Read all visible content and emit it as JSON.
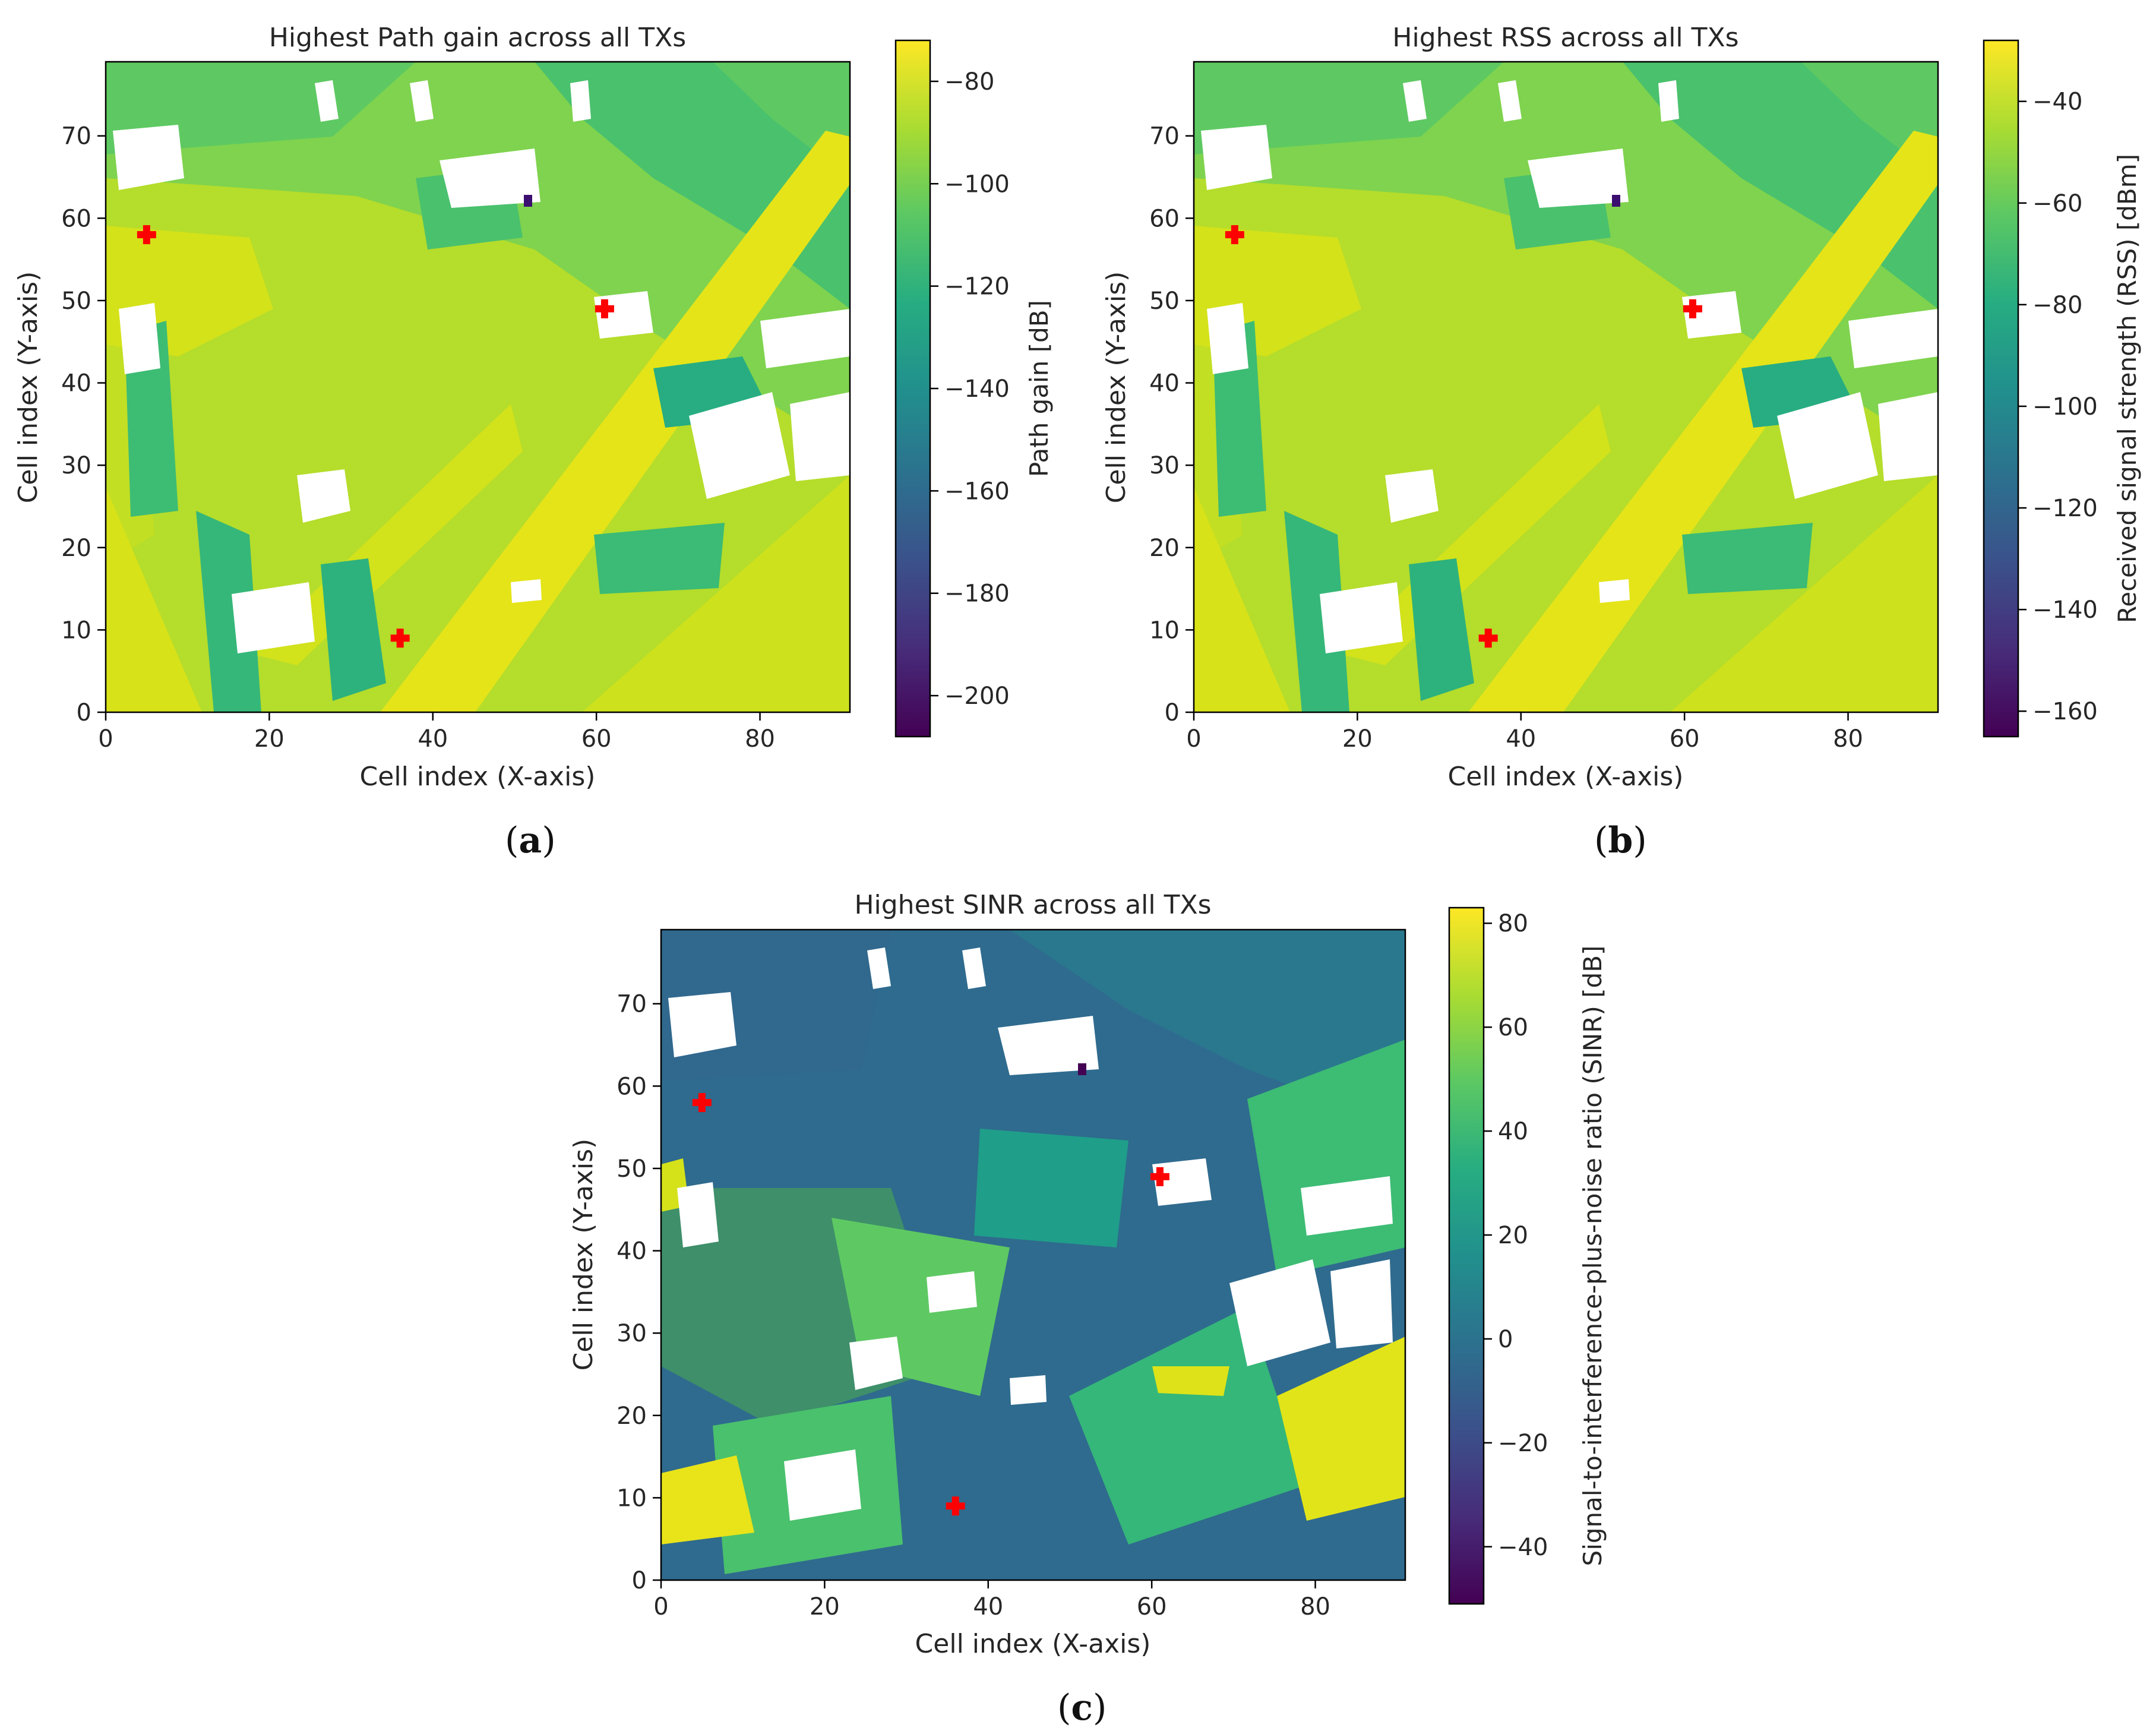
{
  "figure": {
    "captions": [
      {
        "open": "(",
        "letter": "a",
        "close": ")"
      },
      {
        "open": "(",
        "letter": "b",
        "close": ")"
      },
      {
        "open": "(",
        "letter": "c",
        "close": ")"
      }
    ]
  },
  "chart_data": [
    {
      "type": "heatmap",
      "title": "Highest Path gain across all TXs",
      "xlabel": "Cell index (X-axis)",
      "ylabel": "Cell index (Y-axis)",
      "xlim": [
        0,
        91
      ],
      "ylim": [
        0,
        79
      ],
      "xticks": [
        "0",
        "20",
        "40",
        "60",
        "80"
      ],
      "yticks": [
        "0",
        "10",
        "20",
        "30",
        "40",
        "50",
        "60",
        "70"
      ],
      "colorbar": {
        "label": "Path gain [dB]",
        "range": [
          -208,
          -72
        ],
        "ticks": [
          "−80",
          "−100",
          "−120",
          "−140",
          "−160",
          "−180",
          "−200"
        ],
        "colormap": "viridis"
      },
      "grid": false,
      "transmitters": [
        {
          "x": 5,
          "y": 58
        },
        {
          "x": 61,
          "y": 49
        },
        {
          "x": 36,
          "y": 9
        }
      ],
      "marker_color": "#ff0000"
    },
    {
      "type": "heatmap",
      "title": "Highest RSS across all TXs",
      "xlabel": "Cell index (X-axis)",
      "ylabel": "Cell index (Y-axis)",
      "xlim": [
        0,
        91
      ],
      "ylim": [
        0,
        79
      ],
      "xticks": [
        "0",
        "20",
        "40",
        "60",
        "80"
      ],
      "yticks": [
        "0",
        "10",
        "20",
        "30",
        "40",
        "50",
        "60",
        "70"
      ],
      "colorbar": {
        "label": "Received signal strength (RSS) [dBm]",
        "range": [
          -165,
          -28
        ],
        "ticks": [
          "−40",
          "−60",
          "−80",
          "−100",
          "−120",
          "−140",
          "−160"
        ],
        "colormap": "viridis"
      },
      "grid": false,
      "transmitters": [
        {
          "x": 5,
          "y": 58
        },
        {
          "x": 61,
          "y": 49
        },
        {
          "x": 36,
          "y": 9
        }
      ],
      "marker_color": "#ff0000"
    },
    {
      "type": "heatmap",
      "title": "Highest SINR across all TXs",
      "xlabel": "Cell index (X-axis)",
      "ylabel": "Cell index (Y-axis)",
      "xlim": [
        0,
        91
      ],
      "ylim": [
        0,
        79
      ],
      "xticks": [
        "0",
        "20",
        "40",
        "60",
        "80"
      ],
      "yticks": [
        "0",
        "10",
        "20",
        "30",
        "40",
        "50",
        "60",
        "70"
      ],
      "colorbar": {
        "label": "Signal-to-interference-plus-noise ratio (SINR) [dB]",
        "range": [
          -51,
          83
        ],
        "ticks": [
          "80",
          "60",
          "40",
          "20",
          "0",
          "−20",
          "−40"
        ],
        "colormap": "viridis"
      },
      "grid": false,
      "transmitters": [
        {
          "x": 5,
          "y": 58
        },
        {
          "x": 61,
          "y": 49
        },
        {
          "x": 36,
          "y": 9
        }
      ],
      "marker_color": "#ff0000"
    }
  ]
}
